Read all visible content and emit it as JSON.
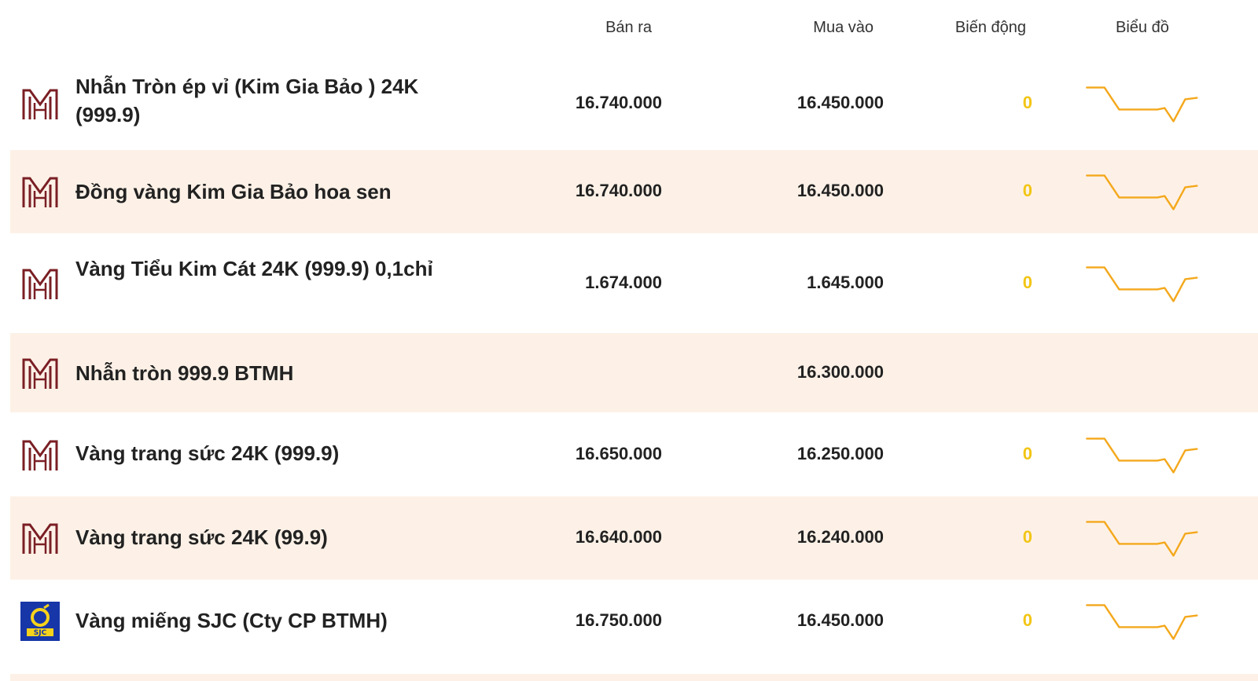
{
  "columns": {
    "sell": "Bán ra",
    "buy": "Mua vào",
    "change": "Biến động",
    "chart": "Biểu đồ"
  },
  "rows": [
    {
      "name": "Nhẫn Tròn ép vỉ (Kim Gia Bảo ) 24K (999.9)",
      "sell": "16.740.000",
      "buy": "16.450.000",
      "change": "0",
      "logo": "btmh-logo",
      "has_chart": true
    },
    {
      "name": "Đồng vàng Kim Gia Bảo hoa sen",
      "sell": "16.740.000",
      "buy": "16.450.000",
      "change": "0",
      "logo": "btmh-logo",
      "has_chart": true
    },
    {
      "name": "Vàng Tiểu Kim Cát 24K (999.9) 0,1chỉ",
      "sell": "1.674.000",
      "buy": "1.645.000",
      "change": "0",
      "logo": "btmh-logo",
      "has_chart": true
    },
    {
      "name": "Nhẫn tròn 999.9 BTMH",
      "sell": "",
      "buy": "16.300.000",
      "change": "",
      "logo": "btmh-logo",
      "has_chart": false
    },
    {
      "name": "Vàng trang sức 24K (999.9)",
      "sell": "16.650.000",
      "buy": "16.250.000",
      "change": "0",
      "logo": "btmh-logo",
      "has_chart": true
    },
    {
      "name": "Vàng trang sức 24K (99.9)",
      "sell": "16.640.000",
      "buy": "16.240.000",
      "change": "0",
      "logo": "btmh-logo",
      "has_chart": true
    },
    {
      "name": "Vàng miếng SJC (Cty CP BTMH)",
      "sell": "16.750.000",
      "buy": "16.450.000",
      "change": "0",
      "logo": "sjc-logo",
      "has_chart": true
    }
  ],
  "colors": {
    "brand_logo": "#7a1f24",
    "change_text": "#f2c514",
    "sparkline": "#f4a81c",
    "row_alt_bg": "#fdf1e7",
    "sjc_blue": "#1736a8",
    "sjc_yellow": "#f6d21b"
  }
}
